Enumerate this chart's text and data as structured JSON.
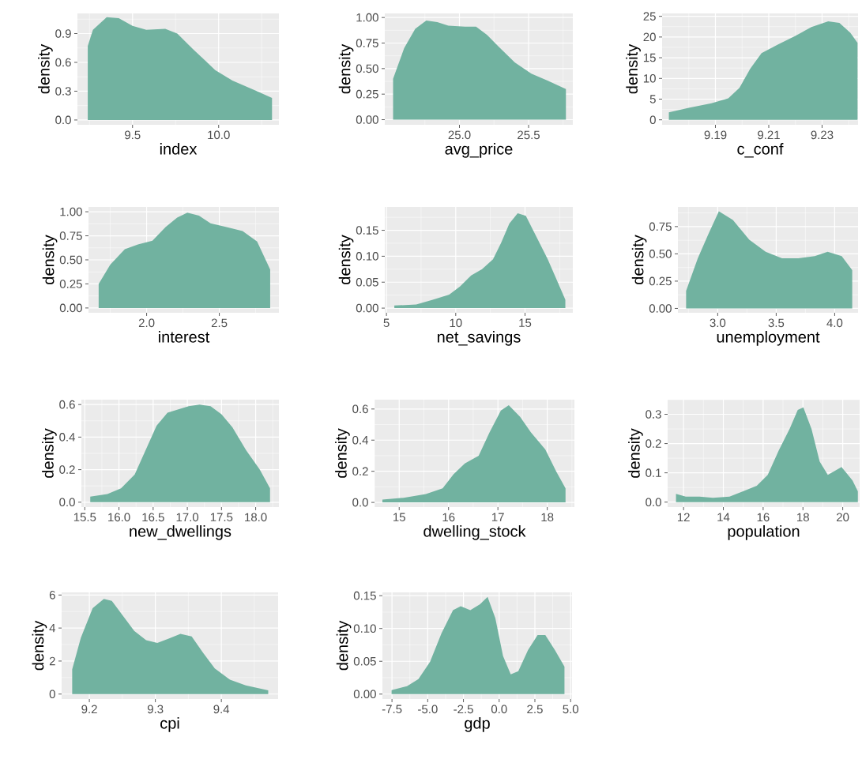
{
  "chart_data": [
    {
      "type": "area",
      "xlabel": "index",
      "ylabel": "density",
      "color": "#71b2a0",
      "grid": true,
      "xlim": [
        9.18,
        10.35
      ],
      "ylim": [
        -0.05,
        1.11
      ],
      "xticks": [
        9.5,
        {
          "value": 10.0,
          "label": "10.0"
        }
      ],
      "yticks": [
        {
          "value": 0,
          "label": "0.0"
        },
        0.3,
        0.6,
        0.9
      ],
      "x": [
        9.24,
        9.27,
        9.35,
        9.42,
        9.5,
        9.58,
        9.69,
        9.76,
        9.85,
        9.98,
        10.08,
        10.21,
        10.31
      ],
      "values": [
        0.77,
        0.94,
        1.07,
        1.06,
        0.98,
        0.94,
        0.95,
        0.9,
        0.74,
        0.52,
        0.41,
        0.31,
        0.23
      ]
    },
    {
      "type": "area",
      "xlabel": "avg_price",
      "ylabel": "density",
      "color": "#71b2a0",
      "grid": true,
      "xlim": [
        24.46,
        25.82
      ],
      "ylim": [
        -0.05,
        1.04
      ],
      "xticks": [
        {
          "value": 25,
          "label": "25.0"
        },
        25.5
      ],
      "yticks": [
        {
          "value": 0,
          "label": "0.00"
        },
        0.25,
        {
          "value": 0.5,
          "label": "0.50"
        },
        0.75,
        {
          "value": 1,
          "label": "1.00"
        }
      ],
      "x": [
        24.52,
        24.6,
        24.68,
        24.76,
        24.84,
        24.92,
        25.04,
        25.12,
        25.2,
        25.28,
        25.4,
        25.52,
        25.64,
        25.77
      ],
      "values": [
        0.4,
        0.7,
        0.89,
        0.97,
        0.955,
        0.92,
        0.91,
        0.91,
        0.83,
        0.72,
        0.56,
        0.45,
        0.38,
        0.3
      ]
    },
    {
      "type": "area",
      "xlabel": "c_conf",
      "ylabel": "density",
      "color": "#71b2a0",
      "grid": true,
      "xlim": [
        9.17,
        9.2435
      ],
      "ylim": [
        -1.2,
        25.7
      ],
      "xticks": [
        9.19,
        9.21,
        9.23
      ],
      "yticks": [
        0,
        5,
        10,
        15,
        20,
        25
      ],
      "x": [
        9.1725,
        9.18,
        9.1885,
        9.1948,
        9.199,
        9.2031,
        9.2073,
        9.2135,
        9.2198,
        9.226,
        9.2323,
        9.2365,
        9.2406,
        9.2433
      ],
      "values": [
        1.8,
        2.9,
        4.0,
        5.2,
        7.7,
        12.4,
        16.1,
        18.2,
        20.2,
        22.4,
        23.8,
        23.4,
        21,
        18.6
      ]
    },
    {
      "type": "area",
      "xlabel": "interest",
      "ylabel": "density",
      "color": "#71b2a0",
      "grid": true,
      "xlim": [
        1.6,
        2.91
      ],
      "ylim": [
        -0.05,
        1.05
      ],
      "xticks": [
        {
          "value": 2,
          "label": "2.0"
        },
        2.5
      ],
      "yticks": [
        {
          "value": 0,
          "label": "0.00"
        },
        0.25,
        {
          "value": 0.5,
          "label": "0.50"
        },
        0.75,
        {
          "value": 1,
          "label": "1.00"
        }
      ],
      "x": [
        1.67,
        1.75,
        1.85,
        1.94,
        2.04,
        2.13,
        2.21,
        2.28,
        2.36,
        2.44,
        2.55,
        2.66,
        2.76,
        2.85
      ],
      "values": [
        0.25,
        0.45,
        0.61,
        0.66,
        0.7,
        0.84,
        0.94,
        0.99,
        0.96,
        0.88,
        0.84,
        0.8,
        0.69,
        0.4
      ]
    },
    {
      "type": "area",
      "xlabel": "net_savings",
      "ylabel": "density",
      "color": "#71b2a0",
      "grid": true,
      "xlim": [
        4.88,
        18.45
      ],
      "ylim": [
        -0.009,
        0.195
      ],
      "xticks": [
        5,
        10,
        15
      ],
      "yticks": [
        {
          "value": 0,
          "label": "0.00"
        },
        0.05,
        {
          "value": 0.1,
          "label": "0.10"
        },
        0.15
      ],
      "x": [
        5.57,
        7.15,
        8.34,
        9.53,
        10.32,
        11.11,
        11.9,
        12.69,
        13.28,
        13.87,
        14.47,
        15.06,
        15.85,
        16.64,
        17.23,
        17.91
      ],
      "values": [
        0.005,
        0.007,
        0.016,
        0.026,
        0.042,
        0.063,
        0.075,
        0.094,
        0.126,
        0.163,
        0.183,
        0.178,
        0.136,
        0.094,
        0.058,
        0.016
      ]
    },
    {
      "type": "area",
      "xlabel": "unemployment",
      "ylabel": "density",
      "color": "#71b2a0",
      "grid": true,
      "xlim": [
        2.66,
        4.2
      ],
      "ylim": [
        -0.04,
        0.93
      ],
      "xticks": [
        {
          "value": 3,
          "label": "3.0"
        },
        3.5,
        {
          "value": 4,
          "label": "4.0"
        }
      ],
      "yticks": [
        {
          "value": 0,
          "label": "0.00"
        },
        0.25,
        {
          "value": 0.5,
          "label": "0.50"
        },
        0.75
      ],
      "x": [
        2.73,
        2.83,
        2.92,
        3.01,
        3.13,
        3.27,
        3.41,
        3.55,
        3.69,
        3.83,
        3.94,
        4.06,
        4.15
      ],
      "values": [
        0.16,
        0.46,
        0.68,
        0.89,
        0.81,
        0.63,
        0.52,
        0.46,
        0.46,
        0.48,
        0.52,
        0.48,
        0.35
      ]
    },
    {
      "type": "area",
      "xlabel": "new_dwellings",
      "ylabel": "density",
      "color": "#71b2a0",
      "grid": true,
      "xlim": [
        15.45,
        18.34
      ],
      "ylim": [
        -0.03,
        0.63
      ],
      "xticks": [
        15.5,
        {
          "value": 16,
          "label": "16.0"
        },
        16.5,
        {
          "value": 17,
          "label": "17.0"
        },
        17.5,
        {
          "value": 18,
          "label": "18.0"
        }
      ],
      "yticks": [
        {
          "value": 0,
          "label": "0.0"
        },
        0.2,
        0.4,
        0.6
      ],
      "x": [
        15.58,
        15.83,
        16.03,
        16.23,
        16.39,
        16.55,
        16.71,
        16.87,
        17.02,
        17.18,
        17.34,
        17.5,
        17.66,
        17.86,
        18.06,
        18.21
      ],
      "values": [
        0.034,
        0.05,
        0.085,
        0.17,
        0.32,
        0.47,
        0.55,
        0.57,
        0.59,
        0.6,
        0.59,
        0.54,
        0.46,
        0.32,
        0.2,
        0.085
      ]
    },
    {
      "type": "area",
      "xlabel": "dwelling_stock",
      "ylabel": "density",
      "color": "#71b2a0",
      "grid": true,
      "xlim": [
        14.5,
        18.55
      ],
      "ylim": [
        -0.03,
        0.66
      ],
      "xticks": [
        15,
        16,
        17,
        18
      ],
      "yticks": [
        {
          "value": 0,
          "label": "0.0"
        },
        0.2,
        0.4,
        0.6
      ],
      "x": [
        14.66,
        15.09,
        15.54,
        15.88,
        16.1,
        16.33,
        16.61,
        16.83,
        17.06,
        17.22,
        17.45,
        17.67,
        17.96,
        18.18,
        18.37
      ],
      "values": [
        0.018,
        0.03,
        0.054,
        0.09,
        0.18,
        0.25,
        0.3,
        0.45,
        0.59,
        0.625,
        0.55,
        0.45,
        0.34,
        0.2,
        0.09
      ]
    },
    {
      "type": "area",
      "xlabel": "population",
      "ylabel": "density",
      "color": "#71b2a0",
      "grid": true,
      "xlim": [
        11.2,
        20.85
      ],
      "ylim": [
        -0.017,
        0.35
      ],
      "xticks": [
        12,
        14,
        16,
        18,
        20
      ],
      "yticks": [
        {
          "value": 0,
          "label": "0.0"
        },
        0.1,
        0.2,
        0.3
      ],
      "x": [
        11.62,
        12.11,
        12.8,
        13.48,
        14.31,
        14.99,
        15.68,
        16.23,
        16.78,
        17.33,
        17.74,
        18.02,
        18.43,
        18.84,
        19.25,
        19.94,
        20.49,
        20.76
      ],
      "values": [
        0.028,
        0.019,
        0.019,
        0.015,
        0.019,
        0.037,
        0.056,
        0.093,
        0.176,
        0.25,
        0.315,
        0.324,
        0.25,
        0.139,
        0.093,
        0.12,
        0.074,
        0.037
      ]
    },
    {
      "type": "area",
      "xlabel": "cpi",
      "ylabel": "density",
      "color": "#71b2a0",
      "grid": true,
      "xlim": [
        9.158,
        9.486
      ],
      "ylim": [
        -0.3,
        6.16
      ],
      "xticks": [
        9.2,
        9.3,
        9.4
      ],
      "yticks": [
        0,
        2,
        4,
        6
      ],
      "x": [
        9.174,
        9.187,
        9.205,
        9.222,
        9.234,
        9.251,
        9.268,
        9.286,
        9.303,
        9.321,
        9.338,
        9.355,
        9.373,
        9.39,
        9.413,
        9.437,
        9.471
      ],
      "values": [
        1.5,
        3.4,
        5.2,
        5.77,
        5.65,
        4.74,
        3.83,
        3.26,
        3.1,
        3.37,
        3.65,
        3.49,
        2.46,
        1.55,
        0.87,
        0.52,
        0.23
      ]
    },
    {
      "type": "area",
      "xlabel": "gdp",
      "ylabel": "density",
      "color": "#71b2a0",
      "grid": true,
      "xlim": [
        -8.17,
        5.1
      ],
      "ylim": [
        -0.0075,
        0.155
      ],
      "xticks": [
        -7.5,
        {
          "value": -5,
          "label": "-5.0"
        },
        -2.5,
        {
          "value": 0,
          "label": "0.0"
        },
        2.5,
        {
          "value": 5,
          "label": "5.0"
        }
      ],
      "yticks": [
        {
          "value": 0,
          "label": "0.00"
        },
        0.05,
        {
          "value": 0.1,
          "label": "0.10"
        },
        0.15
      ],
      "x": [
        -7.53,
        -6.45,
        -5.65,
        -4.84,
        -4.03,
        -3.23,
        -2.69,
        -2.02,
        -1.34,
        -0.81,
        -0.27,
        0.27,
        0.81,
        1.34,
        2.02,
        2.69,
        3.23,
        3.9,
        4.57
      ],
      "values": [
        0.006,
        0.012,
        0.023,
        0.049,
        0.093,
        0.128,
        0.134,
        0.128,
        0.137,
        0.148,
        0.116,
        0.058,
        0.03,
        0.035,
        0.067,
        0.09,
        0.09,
        0.067,
        0.042
      ]
    }
  ]
}
